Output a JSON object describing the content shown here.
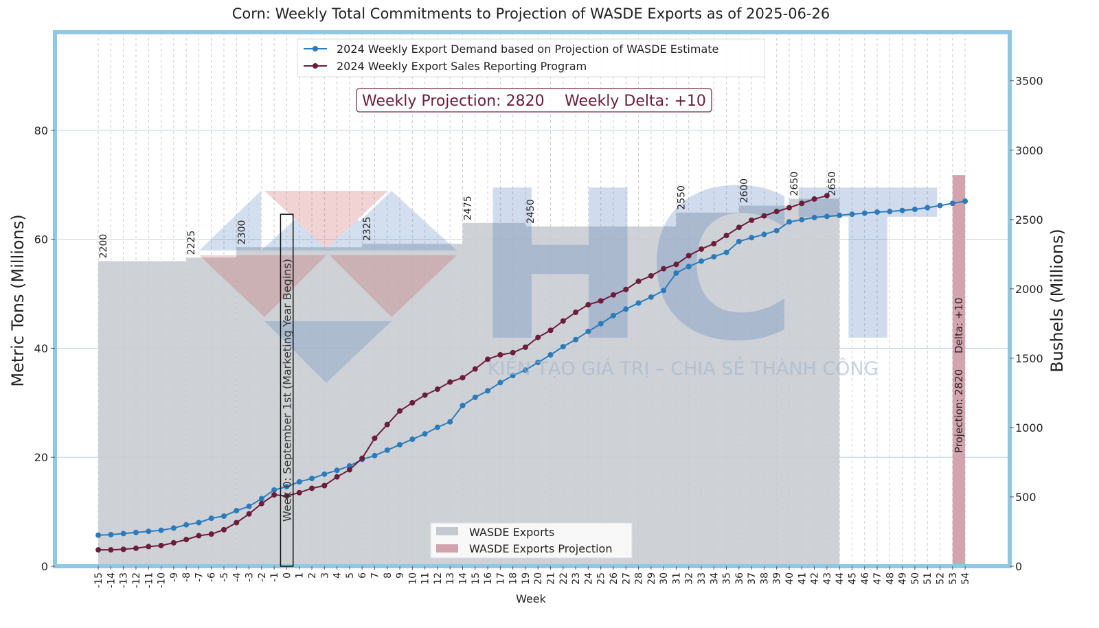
{
  "chart_data": {
    "type": "line",
    "title": "Corn: Weekly Total Commitments to Projection of WASDE Exports as of 2025-06-26",
    "xlabel": "Week",
    "ylabel": "Metric Tons (Millions)",
    "y2label": "Bushels (Millions)",
    "x": [
      -15,
      -14,
      -13,
      -12,
      -11,
      -10,
      -9,
      -8,
      -7,
      -6,
      -5,
      -4,
      -3,
      -2,
      -1,
      0,
      1,
      2,
      3,
      4,
      5,
      6,
      7,
      8,
      9,
      10,
      11,
      12,
      13,
      14,
      15,
      16,
      17,
      18,
      19,
      20,
      21,
      22,
      23,
      24,
      25,
      26,
      27,
      28,
      29,
      30,
      31,
      32,
      33,
      34,
      35,
      36,
      37,
      38,
      39,
      40,
      41,
      42,
      43,
      44,
      45,
      46,
      47,
      48,
      49,
      50,
      51,
      52,
      53,
      54
    ],
    "xlim": [
      -18.45,
      57.55
    ],
    "ylim": [
      0,
      98
    ],
    "yticks": [
      0,
      20,
      40,
      60,
      80
    ],
    "y2lim": [
      0,
      3850
    ],
    "y2ticks": [
      0,
      500,
      1000,
      1500,
      2000,
      2500,
      3000,
      3500
    ],
    "grid": true,
    "legend": "upper center",
    "bar_legend": "lower center",
    "series": [
      {
        "name": "2024 Weekly Export Demand based on Projection of WASDE Estimate",
        "color": "#2b7bba",
        "values": [
          5.7,
          5.8,
          6.0,
          6.2,
          6.4,
          6.6,
          7.0,
          7.6,
          8.0,
          8.8,
          9.2,
          10.2,
          11.0,
          12.4,
          14.0,
          14.6,
          15.5,
          16.1,
          16.9,
          17.6,
          18.4,
          19.6,
          20.3,
          21.3,
          22.3,
          23.3,
          24.3,
          25.5,
          26.5,
          29.5,
          31.0,
          32.2,
          33.7,
          35.0,
          36.0,
          37.4,
          38.8,
          40.3,
          41.6,
          43.1,
          44.5,
          46.0,
          47.2,
          48.3,
          49.4,
          50.6,
          53.8,
          55.0,
          56.0,
          56.8,
          57.6,
          59.6,
          60.3,
          60.9,
          61.6,
          63.2,
          63.6,
          64.0,
          64.2,
          64.4,
          64.6,
          64.8,
          65.0,
          65.1,
          65.3,
          65.5,
          65.8,
          66.2,
          66.6,
          67.0
        ]
      },
      {
        "name": "2024 Weekly Export Sales Reporting Program",
        "color": "#6b1d3a",
        "values": [
          3.0,
          3.0,
          3.1,
          3.3,
          3.6,
          3.8,
          4.3,
          4.9,
          5.6,
          5.9,
          6.7,
          8.0,
          9.6,
          11.5,
          13.1,
          12.9,
          13.5,
          14.3,
          14.8,
          16.4,
          17.7,
          19.8,
          23.5,
          26.0,
          28.5,
          30.0,
          31.4,
          32.5,
          33.8,
          34.6,
          36.2,
          38.0,
          38.8,
          39.2,
          40.2,
          42.0,
          43.3,
          45.0,
          46.6,
          48.0,
          48.7,
          49.8,
          50.8,
          52.3,
          53.3,
          54.6,
          55.4,
          57.0,
          58.2,
          59.2,
          60.7,
          62.2,
          63.5,
          64.3,
          65.1,
          65.8,
          66.6,
          67.4,
          68.0,
          null,
          null,
          null,
          null,
          null,
          null,
          null,
          null,
          null,
          null,
          null
        ]
      }
    ],
    "bars": {
      "name": "WASDE Exports",
      "color": "#c5cad0",
      "axis": "y2",
      "segments": [
        {
          "start": -15,
          "end": -8,
          "value": 2200
        },
        {
          "start": -8,
          "end": -4,
          "value": 2225
        },
        {
          "start": -4,
          "end": 6,
          "value": 2300
        },
        {
          "start": 6,
          "end": 14,
          "value": 2325
        },
        {
          "start": 14,
          "end": 19,
          "value": 2475
        },
        {
          "start": 19,
          "end": 31,
          "value": 2450
        },
        {
          "start": 31,
          "end": 36,
          "value": 2550
        },
        {
          "start": 36,
          "end": 40,
          "value": 2600
        },
        {
          "start": 40,
          "end": 43,
          "value": 2650
        },
        {
          "start": 43,
          "end": 44,
          "value": 2650
        }
      ]
    },
    "projection": {
      "name": "WASDE Exports Projection",
      "color": "#d3a3af",
      "axis": "y2",
      "start": 53,
      "end": 54,
      "value": 2820,
      "label": "Projection: 2820",
      "delta_label": "Delta: +10"
    },
    "summary_box": [
      "Weekly Projection: 2820",
      "Weekly Delta: +10"
    ],
    "week0": {
      "text": "Week 0: September 1st (Marketing Year Begins)",
      "start": 0,
      "end": 1,
      "top": 64.6
    },
    "watermark": {
      "logo": "HCT",
      "slogan": "KIẾN TẠO GIÁ TRỊ – CHIA SẺ THÀNH CÔNG"
    }
  }
}
